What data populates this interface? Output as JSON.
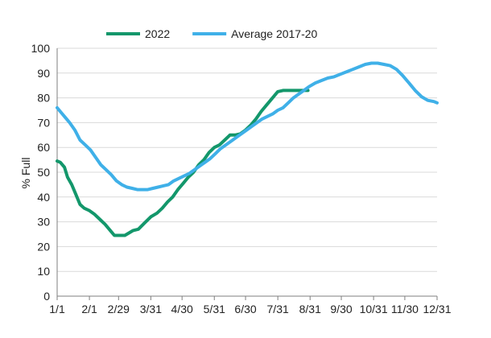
{
  "chart_data": {
    "type": "line",
    "title": "",
    "xlabel": "",
    "ylabel": "% Full",
    "ylim": [
      0,
      100
    ],
    "yticks": [
      0,
      10,
      20,
      30,
      40,
      50,
      60,
      70,
      80,
      90,
      100
    ],
    "xlim": [
      0,
      365
    ],
    "grid": true,
    "legend_position": "top",
    "x_ticks": [
      {
        "label": "1/1",
        "day": 0
      },
      {
        "label": "2/1",
        "day": 31
      },
      {
        "label": "2/29",
        "day": 59
      },
      {
        "label": "3/31",
        "day": 90
      },
      {
        "label": "4/30",
        "day": 120
      },
      {
        "label": "5/31",
        "day": 151
      },
      {
        "label": "6/30",
        "day": 181
      },
      {
        "label": "7/31",
        "day": 212
      },
      {
        "label": "8/31",
        "day": 243
      },
      {
        "label": "9/30",
        "day": 273
      },
      {
        "label": "10/31",
        "day": 304
      },
      {
        "label": "11/30",
        "day": 334
      },
      {
        "label": "12/31",
        "day": 365
      }
    ],
    "series": [
      {
        "name": "2022",
        "color": "#13976b",
        "x": [
          0,
          3,
          7,
          10,
          14,
          18,
          22,
          26,
          31,
          36,
          41,
          46,
          51,
          55,
          59,
          62,
          65,
          69,
          73,
          78,
          84,
          90,
          96,
          101,
          106,
          111,
          116,
          121,
          126,
          131,
          136,
          141,
          146,
          151,
          156,
          161,
          166,
          171,
          176,
          181,
          186,
          191,
          196,
          201,
          206,
          212,
          217,
          222,
          227,
          232,
          237,
          241
        ],
        "values": [
          54.5,
          54,
          52,
          48,
          45,
          41,
          37,
          35.5,
          34.5,
          33,
          31,
          29,
          26.5,
          24.5,
          24.5,
          24.5,
          24.5,
          25.5,
          26.5,
          27,
          29.5,
          32,
          33.5,
          35.5,
          38,
          40,
          43,
          45.5,
          48,
          50,
          53,
          55,
          58,
          60,
          61,
          63,
          65,
          65,
          65.5,
          67,
          69,
          71.5,
          74.5,
          77,
          79.5,
          82.5,
          83,
          83,
          83,
          83,
          83,
          83
        ]
      },
      {
        "name": "Average 2017-20",
        "color": "#3fb0e8",
        "x": [
          0,
          4,
          8,
          12,
          17,
          22,
          27,
          32,
          37,
          42,
          47,
          52,
          57,
          62,
          67,
          72,
          77,
          82,
          87,
          92,
          97,
          102,
          107,
          112,
          117,
          122,
          127,
          132,
          137,
          142,
          147,
          152,
          157,
          162,
          167,
          172,
          177,
          182,
          187,
          192,
          197,
          202,
          207,
          212,
          217,
          222,
          227,
          232,
          237,
          242,
          248,
          254,
          260,
          266,
          272,
          278,
          284,
          290,
          296,
          302,
          308,
          314,
          320,
          326,
          332,
          338,
          344,
          350,
          356,
          362,
          365
        ],
        "values": [
          76,
          74,
          72,
          70,
          67,
          63,
          61,
          59,
          56,
          53,
          51,
          49,
          46.5,
          45,
          44,
          43.5,
          43,
          43,
          43,
          43.5,
          44,
          44.5,
          45,
          46.5,
          47.5,
          48.5,
          49.5,
          51,
          52.5,
          54,
          55.5,
          57.5,
          59.5,
          61,
          62.5,
          64,
          65.5,
          67,
          68.5,
          70,
          71.5,
          72.5,
          73.5,
          75,
          76,
          78,
          80,
          81.5,
          83,
          84.5,
          86,
          87,
          88,
          88.5,
          89.5,
          90.5,
          91.5,
          92.5,
          93.5,
          94,
          94,
          93.5,
          93,
          91.5,
          89,
          86,
          83,
          80.5,
          79,
          78.5,
          78
        ]
      }
    ]
  }
}
